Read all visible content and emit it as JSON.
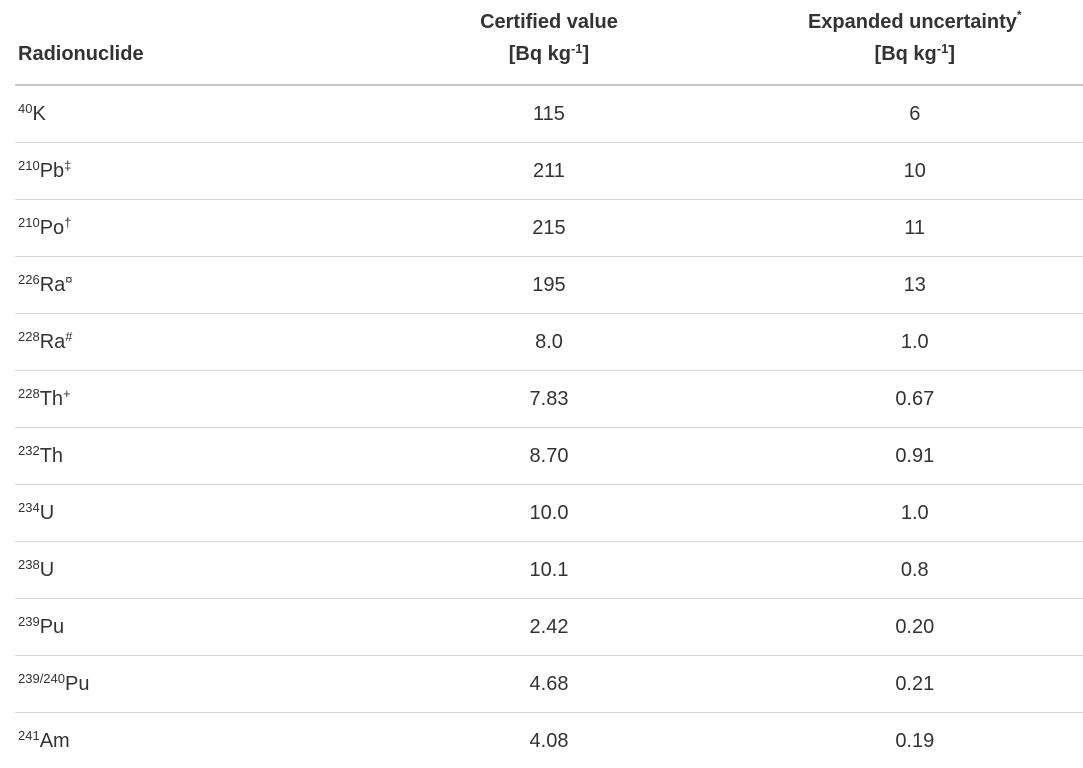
{
  "table": {
    "columns": {
      "radionuclide": {
        "label": "Radionuclide"
      },
      "certified": {
        "label": "Certified value",
        "unit_prefix": "[Bq kg",
        "unit_sup": "-1",
        "unit_suffix": "]"
      },
      "uncertainty": {
        "label": "Expanded uncertainty",
        "marker": "*",
        "unit_prefix": "[Bq kg",
        "unit_sup": "-1",
        "unit_suffix": "]"
      }
    },
    "rows": [
      {
        "mass": "40",
        "element": "K",
        "marker": "",
        "certified": "115",
        "uncertainty": "6"
      },
      {
        "mass": "210",
        "element": "Pb",
        "marker": "‡",
        "certified": "211",
        "uncertainty": "10"
      },
      {
        "mass": "210",
        "element": "Po",
        "marker": "†",
        "certified": "215",
        "uncertainty": "11"
      },
      {
        "mass": "226",
        "element": "Ra",
        "marker": "¤",
        "certified": "195",
        "uncertainty": "13"
      },
      {
        "mass": "228",
        "element": "Ra",
        "marker": "#",
        "certified": "8.0",
        "uncertainty": "1.0"
      },
      {
        "mass": "228",
        "element": "Th",
        "marker": "+",
        "certified": "7.83",
        "uncertainty": "0.67"
      },
      {
        "mass": "232",
        "element": "Th",
        "marker": "",
        "certified": "8.70",
        "uncertainty": "0.91"
      },
      {
        "mass": "234",
        "element": "U",
        "marker": "",
        "certified": "10.0",
        "uncertainty": "1.0"
      },
      {
        "mass": "238",
        "element": "U",
        "marker": "",
        "certified": "10.1",
        "uncertainty": "0.8"
      },
      {
        "mass": "239",
        "element": "Pu",
        "marker": "",
        "certified": "2.42",
        "uncertainty": "0.20"
      },
      {
        "mass": "239/240",
        "element": "Pu",
        "marker": "",
        "certified": "4.68",
        "uncertainty": "0.21"
      },
      {
        "mass": "241",
        "element": "Am",
        "marker": "",
        "certified": "4.08",
        "uncertainty": "0.19"
      }
    ]
  },
  "colors": {
    "text": "#333333",
    "header_border": "#c7c7c7",
    "row_border": "#d9d9d9",
    "background": "#ffffff"
  }
}
